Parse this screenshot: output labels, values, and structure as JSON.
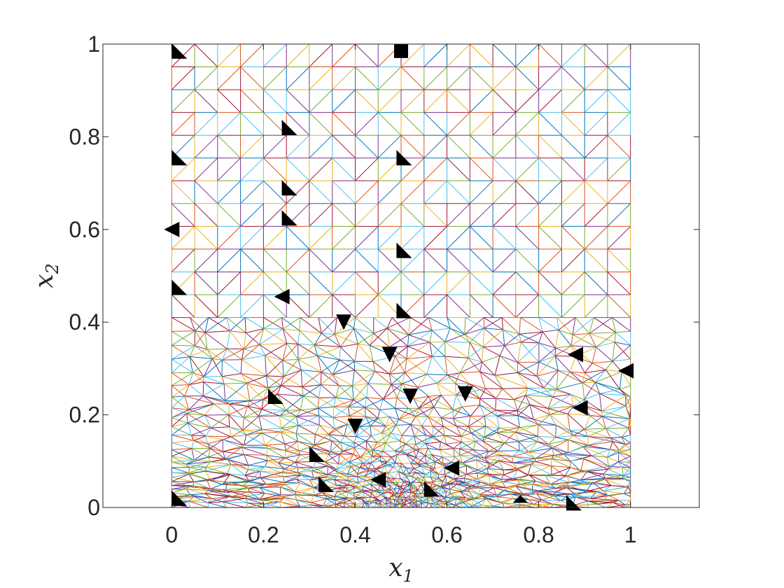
{
  "chart_data": {
    "type": "mesh",
    "title": "",
    "xlabel": "x",
    "xlabel_sub": "1",
    "ylabel": "x",
    "ylabel_sub": "2",
    "xlim": [
      -0.15,
      1.15
    ],
    "ylim": [
      0,
      1
    ],
    "xticks": [
      0,
      0.2,
      0.4,
      0.6,
      0.8,
      1
    ],
    "xtick_labels": [
      "0",
      "0.2",
      "0.4",
      "0.6",
      "0.8",
      "1"
    ],
    "yticks": [
      0,
      0.2,
      0.4,
      0.6,
      0.8,
      1
    ],
    "ytick_labels": [
      "0",
      "0.2",
      "0.4",
      "0.6",
      "0.8",
      "1"
    ],
    "domain": {
      "x": [
        0,
        1
      ],
      "y": [
        0,
        1
      ]
    },
    "structured_region_y": [
      0.41,
      1
    ],
    "structured_cells": 20,
    "refinement_center": [
      0.5,
      0.0
    ],
    "edge_colors": [
      "#0072BD",
      "#D95319",
      "#EDB120",
      "#7E2F8E",
      "#77AC30",
      "#4DBEEE",
      "#A2142F"
    ],
    "filled_marker_color": "#000000",
    "filled_triangles": [
      {
        "x": 0.0,
        "y": 0.985,
        "orient": "right"
      },
      {
        "x": 0.5,
        "y": 0.985,
        "orient": "square"
      },
      {
        "x": 0.24,
        "y": 0.82,
        "orient": "right"
      },
      {
        "x": 0.0,
        "y": 0.755,
        "orient": "right"
      },
      {
        "x": 0.49,
        "y": 0.755,
        "orient": "right"
      },
      {
        "x": 0.24,
        "y": 0.69,
        "orient": "right"
      },
      {
        "x": 0.24,
        "y": 0.625,
        "orient": "right"
      },
      {
        "x": 0.0,
        "y": 0.6,
        "orient": "left"
      },
      {
        "x": 0.49,
        "y": 0.555,
        "orient": "right"
      },
      {
        "x": 0.0,
        "y": 0.475,
        "orient": "right"
      },
      {
        "x": 0.24,
        "y": 0.455,
        "orient": "left"
      },
      {
        "x": 0.49,
        "y": 0.425,
        "orient": "right"
      },
      {
        "x": 0.375,
        "y": 0.4,
        "orient": "down"
      },
      {
        "x": 0.475,
        "y": 0.33,
        "orient": "down"
      },
      {
        "x": 0.88,
        "y": 0.33,
        "orient": "left"
      },
      {
        "x": 0.99,
        "y": 0.295,
        "orient": "left"
      },
      {
        "x": 0.21,
        "y": 0.24,
        "orient": "right"
      },
      {
        "x": 0.52,
        "y": 0.24,
        "orient": "down"
      },
      {
        "x": 0.64,
        "y": 0.245,
        "orient": "down"
      },
      {
        "x": 0.89,
        "y": 0.215,
        "orient": "left"
      },
      {
        "x": 0.4,
        "y": 0.175,
        "orient": "down"
      },
      {
        "x": 0.3,
        "y": 0.115,
        "orient": "right"
      },
      {
        "x": 0.32,
        "y": 0.05,
        "orient": "right"
      },
      {
        "x": 0.61,
        "y": 0.085,
        "orient": "left"
      },
      {
        "x": 0.0,
        "y": 0.02,
        "orient": "right"
      },
      {
        "x": 0.76,
        "y": 0.01,
        "orient": "up"
      },
      {
        "x": 0.86,
        "y": 0.01,
        "orient": "right"
      },
      {
        "x": 0.45,
        "y": 0.06,
        "orient": "left"
      },
      {
        "x": 0.55,
        "y": 0.04,
        "orient": "right"
      }
    ]
  }
}
